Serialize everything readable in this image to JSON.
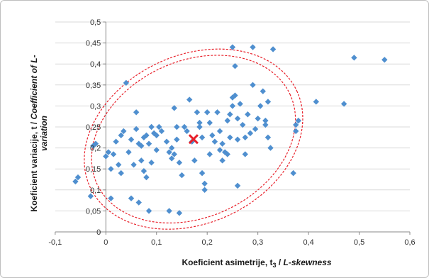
{
  "chart_data": {
    "type": "scatter",
    "title": "",
    "xlabel_prefix": "Koeficient asimetrije, t",
    "xlabel_sub": "3",
    "xlabel_mid": " / ",
    "xlabel_italic": "L-skewness",
    "ylabel_line1_plain": "Koeficient variacije, t / ",
    "ylabel_line1_italic": "Coefficient of L-",
    "ylabel_line2_italic": "variation",
    "xlim": [
      -0.1,
      0.6
    ],
    "ylim": [
      0,
      0.5
    ],
    "x_ticks": [
      "-0,1",
      "0",
      "0,1",
      "0,2",
      "0,3",
      "0,4",
      "0,5",
      "0,6"
    ],
    "y_ticks": [
      "0",
      "0,05",
      "0,1",
      "0,15",
      "0,2",
      "0,25",
      "0,3",
      "0,35",
      "0,4",
      "0,45",
      "0,5"
    ],
    "x_tick_values": [
      -0.1,
      0,
      0.1,
      0.2,
      0.3,
      0.4,
      0.5,
      0.6
    ],
    "y_tick_values": [
      0,
      0.05,
      0.1,
      0.15,
      0.2,
      0.25,
      0.3,
      0.35,
      0.4,
      0.45,
      0.5
    ],
    "grid": "horizontal",
    "legend": "none",
    "colors": {
      "points": "#4f8fcf",
      "center_marker": "#e8202a",
      "ellipses": "#e8202a"
    },
    "center": {
      "x": 0.173,
      "y": 0.221
    },
    "ellipses": [
      {
        "cx": 0.173,
        "cy": 0.221,
        "rx": 0.21,
        "ry": 0.186,
        "rotation_deg": -25
      },
      {
        "cx": 0.173,
        "cy": 0.221,
        "rx": 0.225,
        "ry": 0.2,
        "rotation_deg": -25
      }
    ],
    "series": [
      {
        "points": [
          [
            -0.06,
            0.12
          ],
          [
            -0.055,
            0.13
          ],
          [
            -0.03,
            0.085
          ],
          [
            -0.025,
            0.205
          ],
          [
            -0.02,
            0.21
          ],
          [
            0.0,
            0.18
          ],
          [
            0.005,
            0.19
          ],
          [
            0.01,
            0.08
          ],
          [
            0.01,
            0.15
          ],
          [
            0.015,
            0.185
          ],
          [
            0.02,
            0.215
          ],
          [
            0.025,
            0.16
          ],
          [
            0.03,
            0.14
          ],
          [
            0.03,
            0.23
          ],
          [
            0.035,
            0.24
          ],
          [
            0.04,
            0.355
          ],
          [
            0.045,
            0.19
          ],
          [
            0.05,
            0.22
          ],
          [
            0.05,
            0.08
          ],
          [
            0.055,
            0.16
          ],
          [
            0.06,
            0.285
          ],
          [
            0.06,
            0.245
          ],
          [
            0.065,
            0.07
          ],
          [
            0.065,
            0.21
          ],
          [
            0.07,
            0.17
          ],
          [
            0.07,
            0.205
          ],
          [
            0.075,
            0.225
          ],
          [
            0.075,
            0.145
          ],
          [
            0.08,
            0.13
          ],
          [
            0.08,
            0.23
          ],
          [
            0.085,
            0.05
          ],
          [
            0.085,
            0.21
          ],
          [
            0.09,
            0.25
          ],
          [
            0.09,
            0.165
          ],
          [
            0.095,
            0.235
          ],
          [
            0.1,
            0.195
          ],
          [
            0.1,
            0.23
          ],
          [
            0.105,
            0.25
          ],
          [
            0.11,
            0.24
          ],
          [
            0.12,
            0.215
          ],
          [
            0.125,
            0.19
          ],
          [
            0.125,
            0.05
          ],
          [
            0.13,
            0.175
          ],
          [
            0.13,
            0.2
          ],
          [
            0.135,
            0.185
          ],
          [
            0.135,
            0.295
          ],
          [
            0.14,
            0.22
          ],
          [
            0.14,
            0.25
          ],
          [
            0.145,
            0.165
          ],
          [
            0.145,
            0.045
          ],
          [
            0.15,
            0.135
          ],
          [
            0.155,
            0.25
          ],
          [
            0.16,
            0.24
          ],
          [
            0.165,
            0.315
          ],
          [
            0.17,
            0.215
          ],
          [
            0.175,
            0.17
          ],
          [
            0.18,
            0.285
          ],
          [
            0.185,
            0.25
          ],
          [
            0.185,
            0.26
          ],
          [
            0.19,
            0.225
          ],
          [
            0.19,
            0.14
          ],
          [
            0.195,
            0.115
          ],
          [
            0.195,
            0.1
          ],
          [
            0.2,
            0.285
          ],
          [
            0.205,
            0.26
          ],
          [
            0.205,
            0.185
          ],
          [
            0.21,
            0.23
          ],
          [
            0.215,
            0.215
          ],
          [
            0.22,
            0.285
          ],
          [
            0.225,
            0.24
          ],
          [
            0.225,
            0.195
          ],
          [
            0.23,
            0.21
          ],
          [
            0.23,
            0.17
          ],
          [
            0.235,
            0.19
          ],
          [
            0.24,
            0.185
          ],
          [
            0.24,
            0.265
          ],
          [
            0.245,
            0.28
          ],
          [
            0.245,
            0.225
          ],
          [
            0.25,
            0.3
          ],
          [
            0.25,
            0.32
          ],
          [
            0.25,
            0.44
          ],
          [
            0.255,
            0.395
          ],
          [
            0.255,
            0.325
          ],
          [
            0.26,
            0.27
          ],
          [
            0.26,
            0.22
          ],
          [
            0.26,
            0.11
          ],
          [
            0.265,
            0.305
          ],
          [
            0.27,
            0.255
          ],
          [
            0.275,
            0.225
          ],
          [
            0.275,
            0.185
          ],
          [
            0.28,
            0.28
          ],
          [
            0.285,
            0.235
          ],
          [
            0.29,
            0.35
          ],
          [
            0.29,
            0.44
          ],
          [
            0.295,
            0.245
          ],
          [
            0.3,
            0.27
          ],
          [
            0.305,
            0.3
          ],
          [
            0.31,
            0.335
          ],
          [
            0.315,
            0.265
          ],
          [
            0.315,
            0.255
          ],
          [
            0.32,
            0.225
          ],
          [
            0.32,
            0.31
          ],
          [
            0.325,
            0.2
          ],
          [
            0.33,
            0.435
          ],
          [
            0.37,
            0.14
          ],
          [
            0.375,
            0.24
          ],
          [
            0.375,
            0.255
          ],
          [
            0.38,
            0.265
          ],
          [
            0.415,
            0.31
          ],
          [
            0.47,
            0.305
          ],
          [
            0.49,
            0.415
          ],
          [
            0.55,
            0.41
          ]
        ]
      }
    ]
  }
}
